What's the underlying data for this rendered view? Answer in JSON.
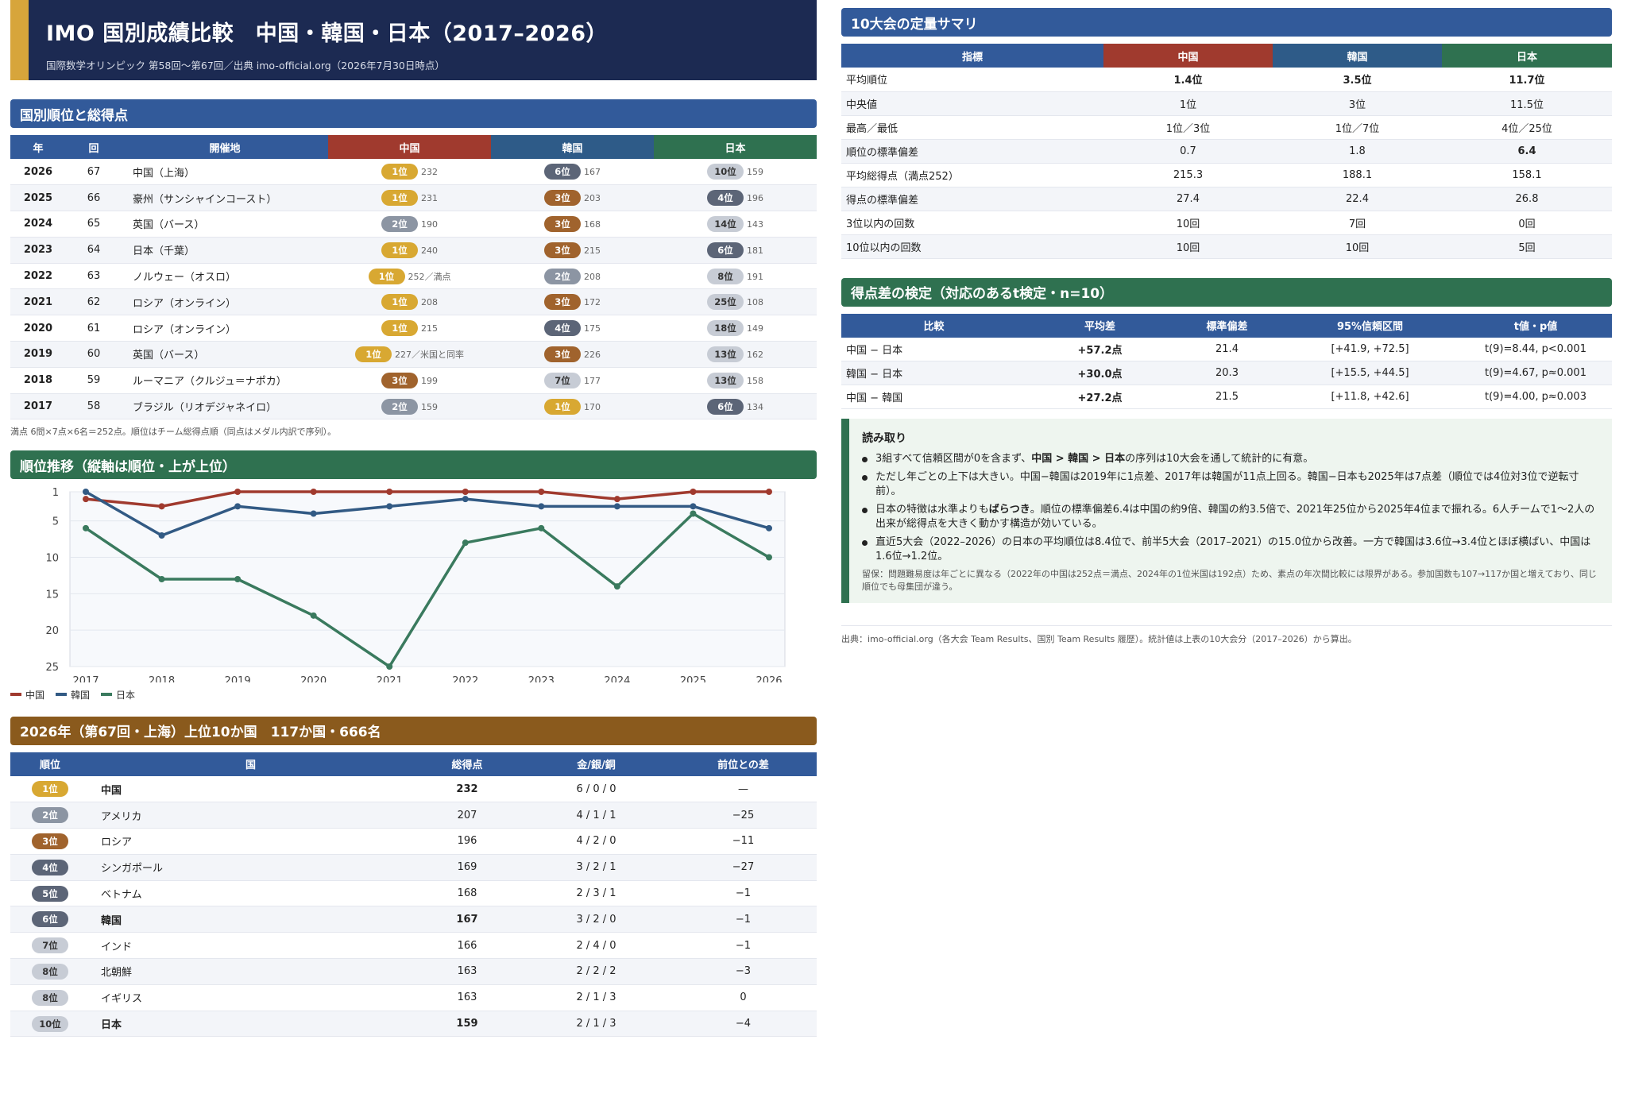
{
  "header": {
    "title": "IMO 国別成績比較　中国・韓国・日本（2017–2026）",
    "subtitle": "国際数学オリンピック 第58回〜第67回／出典 imo-official.org（2026年7月30日時点）"
  },
  "sec_rank": "国別順位と総得点",
  "rank_headers": [
    "年",
    "回",
    "開催地",
    "中国",
    "韓国",
    "日本"
  ],
  "rank_rows": [
    {
      "year": "2026",
      "round": "67",
      "venue": "中国（上海）",
      "cn": "1位",
      "cn_pts": "232",
      "kr": "6位",
      "kr_pts": "167",
      "jp": "10位",
      "jp_pts": "159"
    },
    {
      "year": "2025",
      "round": "66",
      "venue": "豪州（サンシャインコースト）",
      "cn": "1位",
      "cn_pts": "231",
      "kr": "3位",
      "kr_pts": "203",
      "jp": "4位",
      "jp_pts": "196"
    },
    {
      "year": "2024",
      "round": "65",
      "venue": "英国（バース）",
      "cn": "2位",
      "cn_pts": "190",
      "kr": "3位",
      "kr_pts": "168",
      "jp": "14位",
      "jp_pts": "143"
    },
    {
      "year": "2023",
      "round": "64",
      "venue": "日本（千葉）",
      "cn": "1位",
      "cn_pts": "240",
      "kr": "3位",
      "kr_pts": "215",
      "jp": "6位",
      "jp_pts": "181"
    },
    {
      "year": "2022",
      "round": "63",
      "venue": "ノルウェー（オスロ）",
      "cn": "1位",
      "cn_pts": "252／満点",
      "kr": "2位",
      "kr_pts": "208",
      "jp": "8位",
      "jp_pts": "191"
    },
    {
      "year": "2021",
      "round": "62",
      "venue": "ロシア（オンライン）",
      "cn": "1位",
      "cn_pts": "208",
      "kr": "3位",
      "kr_pts": "172",
      "jp": "25位",
      "jp_pts": "108"
    },
    {
      "year": "2020",
      "round": "61",
      "venue": "ロシア（オンライン）",
      "cn": "1位",
      "cn_pts": "215",
      "kr": "4位",
      "kr_pts": "175",
      "jp": "18位",
      "jp_pts": "149"
    },
    {
      "year": "2019",
      "round": "60",
      "venue": "英国（バース）",
      "cn": "1位",
      "cn_pts": "227／米国と同率",
      "kr": "3位",
      "kr_pts": "226",
      "jp": "13位",
      "jp_pts": "162"
    },
    {
      "year": "2018",
      "round": "59",
      "venue": "ルーマニア（クルジュ＝ナポカ）",
      "cn": "3位",
      "cn_pts": "199",
      "kr": "7位",
      "kr_pts": "177",
      "jp": "13位",
      "jp_pts": "158"
    },
    {
      "year": "2017",
      "round": "58",
      "venue": "ブラジル（リオデジャネイロ）",
      "cn": "2位",
      "cn_pts": "159",
      "kr": "1位",
      "kr_pts": "170",
      "jp": "6位",
      "jp_pts": "134"
    }
  ],
  "rank_note": "満点 6問×7点×6名＝252点。順位はチーム総得点順（同点はメダル内訳で序列）。",
  "sec_trend": "順位推移（縦軸は順位・上が上位）",
  "chart_data": {
    "type": "line",
    "x": [
      "2017",
      "2018",
      "2019",
      "2020",
      "2021",
      "2022",
      "2023",
      "2024",
      "2025",
      "2026"
    ],
    "y_ticks": [
      "1",
      "5",
      "10",
      "15",
      "20",
      "25"
    ],
    "ylim": [
      1,
      25
    ],
    "y_inverted": true,
    "grid": true,
    "legend": "bottom-left",
    "series": [
      {
        "name": "中国",
        "color": "#a03a2e",
        "values": [
          2,
          3,
          1,
          1,
          1,
          1,
          1,
          2,
          1,
          1
        ]
      },
      {
        "name": "韓国",
        "color": "#325a84",
        "values": [
          1,
          7,
          3,
          4,
          3,
          2,
          3,
          3,
          3,
          6
        ]
      },
      {
        "name": "日本",
        "color": "#3a7a5e",
        "values": [
          6,
          13,
          13,
          18,
          25,
          8,
          6,
          14,
          4,
          10
        ]
      }
    ]
  },
  "sec_top": "2026年（第67回・上海）上位10か国　117か国・666名",
  "top_headers": [
    "順位",
    "国",
    "総得点",
    "金/銀/銅",
    "前位との差"
  ],
  "top_rows": [
    {
      "rank": "1位",
      "pc": "g",
      "country": "中国",
      "score": "232",
      "medals": "6 / 0 / 0",
      "diff": "—",
      "bold": true
    },
    {
      "rank": "2位",
      "pc": "s",
      "country": "アメリカ",
      "score": "207",
      "medals": "4 / 1 / 1",
      "diff": "−25",
      "bold": false
    },
    {
      "rank": "3位",
      "pc": "br",
      "country": "ロシア",
      "score": "196",
      "medals": "4 / 2 / 0",
      "diff": "−11",
      "bold": false
    },
    {
      "rank": "4位",
      "pc": "k",
      "country": "シンガポール",
      "score": "169",
      "medals": "3 / 2 / 1",
      "diff": "−27",
      "bold": false
    },
    {
      "rank": "5位",
      "pc": "k",
      "country": "ベトナム",
      "score": "168",
      "medals": "2 / 3 / 1",
      "diff": "−1",
      "bold": false
    },
    {
      "rank": "6位",
      "pc": "k",
      "country": "韓国",
      "score": "167",
      "medals": "3 / 2 / 0",
      "diff": "−1",
      "bold": true
    },
    {
      "rank": "7位",
      "pc": "lt",
      "country": "インド",
      "score": "166",
      "medals": "2 / 4 / 0",
      "diff": "−1",
      "bold": false
    },
    {
      "rank": "8位",
      "pc": "lt",
      "country": "北朝鮮",
      "score": "163",
      "medals": "2 / 2 / 2",
      "diff": "−3",
      "bold": false
    },
    {
      "rank": "8位",
      "pc": "lt",
      "country": "イギリス",
      "score": "163",
      "medals": "2 / 1 / 3",
      "diff": "0",
      "bold": false
    },
    {
      "rank": "10位",
      "pc": "lt",
      "country": "日本",
      "score": "159",
      "medals": "2 / 1 / 3",
      "diff": "−4",
      "bold": true
    }
  ],
  "sec_summary": "10大会の定量サマリ",
  "sum_headers": [
    "指標",
    "中国",
    "韓国",
    "日本"
  ],
  "sum_rows": [
    {
      "label": "平均順位",
      "cn": "1.4位",
      "kr": "3.5位",
      "jp": "11.7位",
      "bcn": true,
      "bkr": true,
      "bjp": true
    },
    {
      "label": "中央値",
      "cn": "1位",
      "kr": "3位",
      "jp": "11.5位",
      "bcn": false,
      "bkr": false,
      "bjp": false
    },
    {
      "label": "最高／最低",
      "cn": "1位／3位",
      "kr": "1位／7位",
      "jp": "4位／25位",
      "bcn": false,
      "bkr": false,
      "bjp": false
    },
    {
      "label": "順位の標準偏差",
      "cn": "0.7",
      "kr": "1.8",
      "jp": "6.4",
      "bcn": false,
      "bkr": false,
      "bjp": true
    },
    {
      "label": "平均総得点（満点252）",
      "cn": "215.3",
      "kr": "188.1",
      "jp": "158.1",
      "bcn": false,
      "bkr": false,
      "bjp": false
    },
    {
      "label": "得点の標準偏差",
      "cn": "27.4",
      "kr": "22.4",
      "jp": "26.8",
      "bcn": false,
      "bkr": false,
      "bjp": false
    },
    {
      "label": "3位以内の回数",
      "cn": "10回",
      "kr": "7回",
      "jp": "0回",
      "bcn": false,
      "bkr": false,
      "bjp": false
    },
    {
      "label": "10位以内の回数",
      "cn": "10回",
      "kr": "10回",
      "jp": "5回",
      "bcn": false,
      "bkr": false,
      "bjp": false
    }
  ],
  "sec_test": "得点差の検定（対応のあるt検定・n=10）",
  "test_headers": [
    "比較",
    "平均差",
    "標準偏差",
    "95%信頼区間",
    "t値・p値"
  ],
  "test_rows": [
    {
      "pair": "中国 − 日本",
      "mean": "+57.2点",
      "sd": "21.4",
      "ci": "[+41.9, +72.5]",
      "t": "t(9)=8.44, p<0.001"
    },
    {
      "pair": "韓国 − 日本",
      "mean": "+30.0点",
      "sd": "20.3",
      "ci": "[+15.5, +44.5]",
      "t": "t(9)=4.67, p≈0.001"
    },
    {
      "pair": "中国 − 韓国",
      "mean": "+27.2点",
      "sd": "21.5",
      "ci": "[+11.8, +42.6]",
      "t": "t(9)=4.00, p≈0.003"
    }
  ],
  "read": {
    "title": "読み取り",
    "b1a": "3組すべて信頼区間が0を含まず、",
    "b1b": "中国 > 韓国 > 日本",
    "b1c": "の序列は10大会を通して統計的に有意。",
    "b2": "ただし年ごとの上下は大きい。中国−韓国は2019年に1点差、2017年は韓国が11点上回る。韓国−日本も2025年は7点差（順位では4位対3位で逆転寸前）。",
    "b3a": "日本の特徴は水準よりも",
    "b3b": "ばらつき",
    "b3c": "。順位の標準偏差6.4は中国の約9倍、韓国の約3.5倍で、2021年25位から2025年4位まで振れる。6人チームで1〜2人の出来が総得点を大きく動かす構造が効いている。",
    "b4": "直近5大会（2022–2026）の日本の平均順位は8.4位で、前半5大会（2017–2021）の15.0位から改善。一方で韓国は3.6位→3.4位とほぼ横ばい、中国は1.6位→1.2位。",
    "caution": "留保：問題難易度は年ごとに異なる（2022年の中国は252点＝満点、2024年の1位米国は192点）ため、素点の年次間比較には限界がある。参加国数も107→117か国と増えており、同じ順位でも母集団が違う。"
  },
  "source": "出典：imo-official.org（各大会 Team Results、国別 Team Results 履歴）。統計値は上表の10大会分（2017–2026）から算出。"
}
